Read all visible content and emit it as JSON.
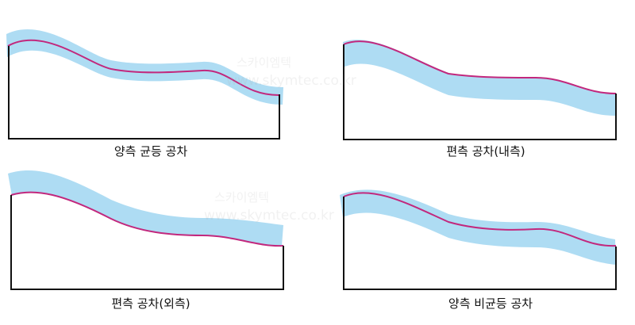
{
  "colors": {
    "band": "#aedcf3",
    "nominal_line": "#c2287d",
    "axis": "#111111",
    "background": "#ffffff"
  },
  "watermark": {
    "name": "스카이엠텍",
    "url": "www.skymtec.co.kr"
  },
  "panels": [
    {
      "caption": "양측 균등 공차"
    },
    {
      "caption": "편측 공차(내측)"
    },
    {
      "caption": "편측 공차(외측)"
    },
    {
      "caption": "양측 비균등 공차"
    }
  ]
}
